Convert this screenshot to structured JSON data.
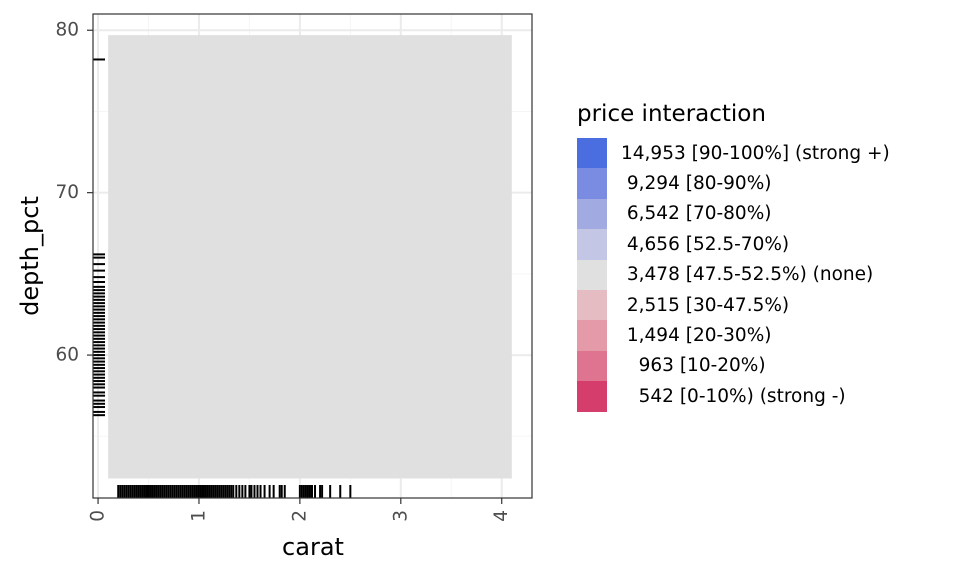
{
  "chart_data": {
    "type": "heatmap",
    "title": "",
    "xlabel": "carat",
    "ylabel": "depth_pct",
    "xlim": [
      -0.05,
      4.3
    ],
    "ylim": [
      51.2,
      81.0
    ],
    "x_ticks": [
      0,
      1,
      2,
      3,
      4
    ],
    "y_ticks": [
      60,
      70,
      80
    ],
    "grid": true,
    "tiles": [
      {
        "x0": 0.1,
        "x1": 4.1,
        "y0": 52.4,
        "y1": 79.7,
        "color": "#E0E0E0",
        "legend_index": 4
      }
    ],
    "rug_x": [
      0.2,
      0.22,
      0.24,
      0.26,
      0.28,
      0.3,
      0.32,
      0.34,
      0.36,
      0.38,
      0.4,
      0.42,
      0.44,
      0.46,
      0.48,
      0.5,
      0.52,
      0.54,
      0.56,
      0.58,
      0.6,
      0.62,
      0.64,
      0.66,
      0.68,
      0.7,
      0.72,
      0.74,
      0.76,
      0.78,
      0.8,
      0.82,
      0.84,
      0.86,
      0.88,
      0.9,
      0.92,
      0.94,
      0.96,
      0.98,
      1.0,
      1.02,
      1.04,
      1.06,
      1.08,
      1.1,
      1.12,
      1.14,
      1.16,
      1.18,
      1.2,
      1.22,
      1.24,
      1.26,
      1.28,
      1.3,
      1.32,
      1.34,
      1.37,
      1.4,
      1.43,
      1.46,
      1.5,
      1.52,
      1.55,
      1.58,
      1.61,
      1.65,
      1.7,
      1.74,
      1.8,
      1.82,
      1.85,
      2.0,
      2.02,
      2.04,
      2.06,
      2.08,
      2.1,
      2.12,
      2.15,
      2.2,
      2.22,
      2.3,
      2.4,
      2.5
    ],
    "rug_y": [
      56.3,
      56.5,
      56.8,
      57.0,
      57.2,
      57.5,
      57.7,
      58.0,
      58.2,
      58.4,
      58.6,
      58.8,
      59.0,
      59.2,
      59.4,
      59.6,
      59.8,
      60.0,
      60.2,
      60.4,
      60.6,
      60.8,
      61.0,
      61.2,
      61.4,
      61.6,
      61.8,
      62.0,
      62.2,
      62.4,
      62.6,
      62.8,
      63.0,
      63.2,
      63.4,
      63.6,
      63.8,
      64.0,
      64.2,
      64.5,
      64.8,
      65.2,
      65.6,
      66.0,
      66.2,
      78.2
    ],
    "legend": {
      "title": "price interaction",
      "placement": "right",
      "entries": [
        {
          "label": "14,953 [90-100%] (strong +)",
          "color": "#4A6EE0"
        },
        {
          "label": " 9,294 [80-90%)",
          "color": "#7A8BE2"
        },
        {
          "label": " 6,542 [70-80%)",
          "color": "#A2AAE2"
        },
        {
          "label": " 4,656 [52.5-70%)",
          "color": "#C3C6E5"
        },
        {
          "label": " 3,478 [47.5-52.5%) (none)",
          "color": "#E0E0E0"
        },
        {
          "label": " 2,515 [30-47.5%)",
          "color": "#E6BCC3"
        },
        {
          "label": " 1,494 [20-30%)",
          "color": "#E59AAA"
        },
        {
          "label": "   963 [10-20%)",
          "color": "#DE7490"
        },
        {
          "label": "   542 [0-10%) (strong -)",
          "color": "#D43D6C"
        }
      ]
    },
    "colors": {
      "panel_border": "#333333",
      "grid_major": "#EBEBEB",
      "grid_minor": "#F5F5F5",
      "tick_text": "#4D4D4D",
      "rug": "#000000"
    }
  }
}
